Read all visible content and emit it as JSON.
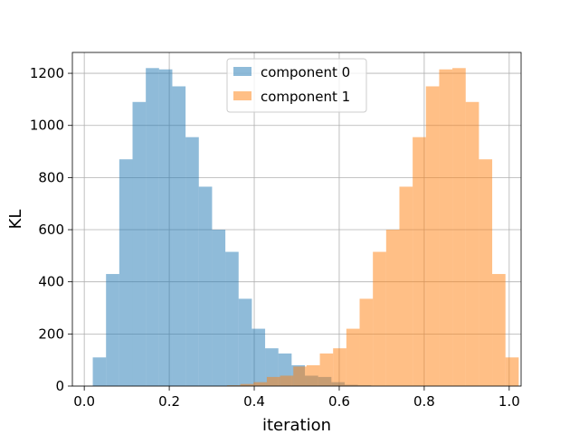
{
  "chart_data": {
    "type": "histogram",
    "title": "",
    "xlabel": "iteration",
    "ylabel": "KL",
    "xlim": [
      -0.028,
      1.028
    ],
    "ylim": [
      0,
      1280
    ],
    "x_ticks": [
      0.0,
      0.2,
      0.4,
      0.6,
      0.8,
      1.0
    ],
    "x_tick_labels": [
      "0.0",
      "0.2",
      "0.4",
      "0.6",
      "0.8",
      "1.0"
    ],
    "y_ticks": [
      0,
      200,
      400,
      600,
      800,
      1000,
      1200
    ],
    "y_tick_labels": [
      "0",
      "200",
      "400",
      "600",
      "800",
      "1000",
      "1200"
    ],
    "grid": true,
    "legend_position": "upper-center",
    "bin_width": 0.0312,
    "series": [
      {
        "name": "component 0",
        "color": "#1f77b4",
        "opacity": 0.5,
        "bins": [
          {
            "x0": 0.02,
            "x1": 0.0512,
            "count": 110
          },
          {
            "x0": 0.0512,
            "x1": 0.0824,
            "count": 430
          },
          {
            "x0": 0.0824,
            "x1": 0.1136,
            "count": 870
          },
          {
            "x0": 0.1136,
            "x1": 0.1448,
            "count": 1090
          },
          {
            "x0": 0.1448,
            "x1": 0.176,
            "count": 1220
          },
          {
            "x0": 0.176,
            "x1": 0.2072,
            "count": 1215
          },
          {
            "x0": 0.2072,
            "x1": 0.2384,
            "count": 1150
          },
          {
            "x0": 0.2384,
            "x1": 0.2696,
            "count": 955
          },
          {
            "x0": 0.2696,
            "x1": 0.3008,
            "count": 765
          },
          {
            "x0": 0.3008,
            "x1": 0.332,
            "count": 600
          },
          {
            "x0": 0.332,
            "x1": 0.3632,
            "count": 515
          },
          {
            "x0": 0.3632,
            "x1": 0.3944,
            "count": 335
          },
          {
            "x0": 0.3944,
            "x1": 0.4256,
            "count": 220
          },
          {
            "x0": 0.4256,
            "x1": 0.4568,
            "count": 145
          },
          {
            "x0": 0.4568,
            "x1": 0.488,
            "count": 125
          },
          {
            "x0": 0.488,
            "x1": 0.5192,
            "count": 80
          },
          {
            "x0": 0.5192,
            "x1": 0.5504,
            "count": 40
          },
          {
            "x0": 0.5504,
            "x1": 0.5816,
            "count": 35
          },
          {
            "x0": 0.5816,
            "x1": 0.6128,
            "count": 15
          },
          {
            "x0": 0.6128,
            "x1": 0.644,
            "count": 5
          },
          {
            "x0": 0.644,
            "x1": 0.6752,
            "count": 3
          }
        ]
      },
      {
        "name": "component 1",
        "color": "#ff7f0e",
        "opacity": 0.5,
        "bins": [
          {
            "x0": 0.336,
            "x1": 0.3672,
            "count": 3
          },
          {
            "x0": 0.3672,
            "x1": 0.3984,
            "count": 8
          },
          {
            "x0": 0.3984,
            "x1": 0.4296,
            "count": 15
          },
          {
            "x0": 0.4296,
            "x1": 0.4608,
            "count": 35
          },
          {
            "x0": 0.4608,
            "x1": 0.492,
            "count": 40
          },
          {
            "x0": 0.492,
            "x1": 0.5232,
            "count": 75
          },
          {
            "x0": 0.5232,
            "x1": 0.5544,
            "count": 80
          },
          {
            "x0": 0.5544,
            "x1": 0.5856,
            "count": 125
          },
          {
            "x0": 0.5856,
            "x1": 0.6168,
            "count": 145
          },
          {
            "x0": 0.6168,
            "x1": 0.648,
            "count": 220
          },
          {
            "x0": 0.648,
            "x1": 0.6792,
            "count": 335
          },
          {
            "x0": 0.6792,
            "x1": 0.7104,
            "count": 515
          },
          {
            "x0": 0.7104,
            "x1": 0.7416,
            "count": 600
          },
          {
            "x0": 0.7416,
            "x1": 0.7728,
            "count": 765
          },
          {
            "x0": 0.7728,
            "x1": 0.804,
            "count": 955
          },
          {
            "x0": 0.804,
            "x1": 0.8352,
            "count": 1150
          },
          {
            "x0": 0.8352,
            "x1": 0.8664,
            "count": 1215
          },
          {
            "x0": 0.8664,
            "x1": 0.8976,
            "count": 1220
          },
          {
            "x0": 0.8976,
            "x1": 0.9288,
            "count": 1090
          },
          {
            "x0": 0.9288,
            "x1": 0.96,
            "count": 870
          },
          {
            "x0": 0.96,
            "x1": 0.9912,
            "count": 430
          },
          {
            "x0": 0.9912,
            "x1": 1.0224,
            "count": 110
          }
        ]
      }
    ]
  }
}
